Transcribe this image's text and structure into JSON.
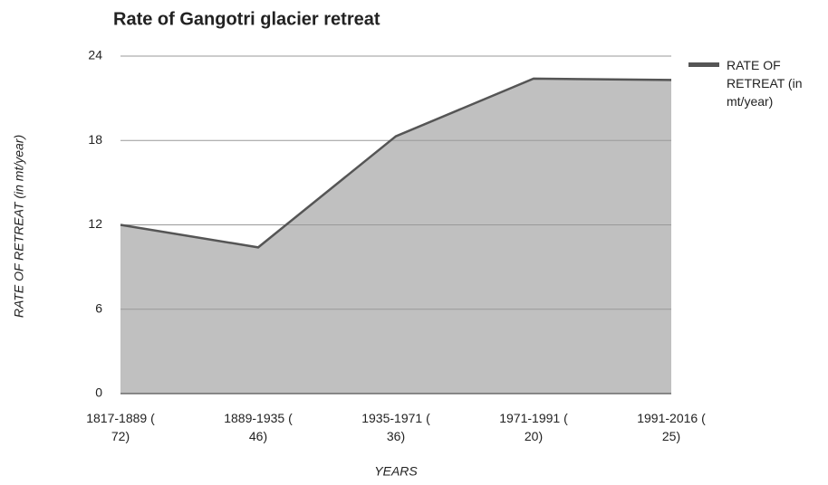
{
  "chart_data": {
    "type": "area",
    "title": "Rate of Gangotri glacier retreat",
    "x_label": "YEARS",
    "y_label": "RATE OF RETREAT (in mt/year)",
    "categories": [
      "1817-1889 ( 72)",
      "1889-1935 ( 46)",
      "1935-1971 ( 36)",
      "1971-1991 ( 20)",
      "1991-2016 ( 25)"
    ],
    "series": [
      {
        "name": "RATE OF RETREAT (in mt/year)",
        "color": "#555555",
        "fill": "#c0c0c0",
        "values": [
          12,
          10.4,
          18.3,
          22.4,
          22.3
        ]
      }
    ],
    "ylim": [
      0,
      24
    ],
    "yticks": [
      0,
      6,
      12,
      18,
      24
    ],
    "grid": true,
    "legend": "right"
  }
}
